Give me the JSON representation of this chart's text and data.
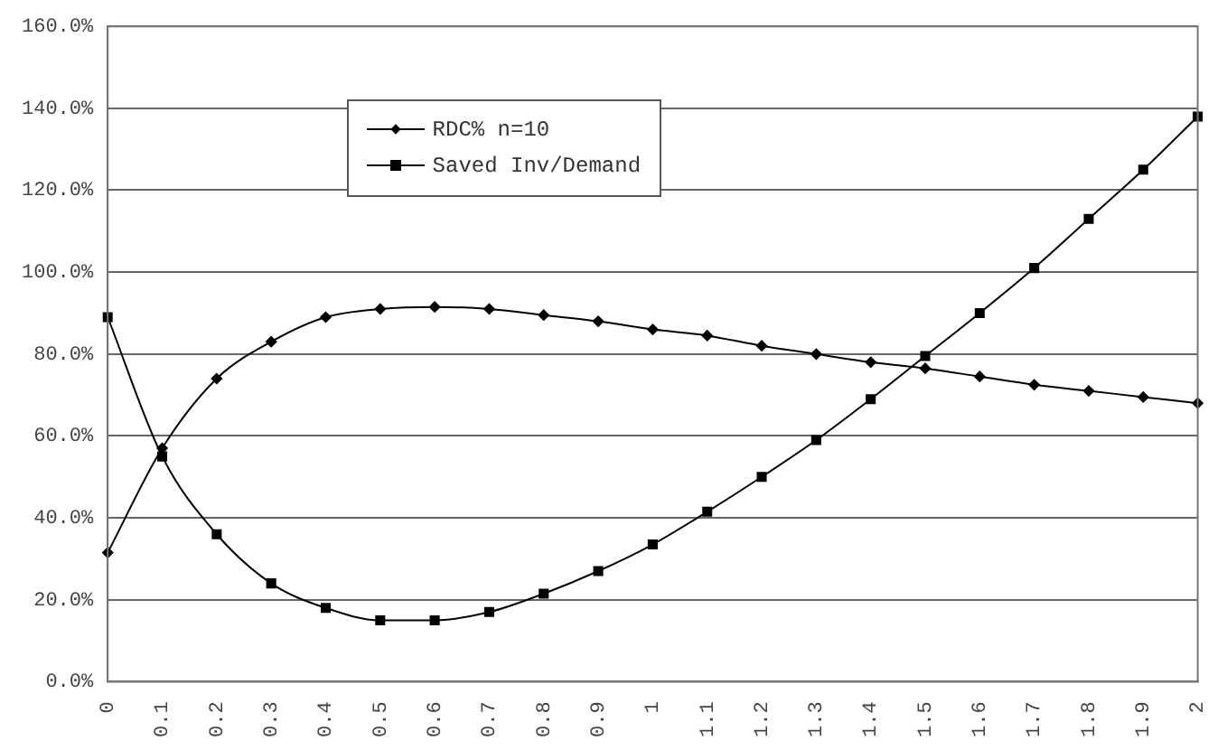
{
  "chart_data": {
    "type": "line",
    "categories": [
      "0",
      "0.1",
      "0.2",
      "0.3",
      "0.4",
      "0.5",
      "0.6",
      "0.7",
      "0.8",
      "0.9",
      "1",
      "1.1",
      "1.2",
      "1.3",
      "1.4",
      "1.5",
      "1.6",
      "1.7",
      "1.8",
      "1.9",
      "2"
    ],
    "series": [
      {
        "name": "RDC% n=10",
        "color": "#000000",
        "marker": "diamond",
        "values": [
          31.5,
          57,
          74,
          83,
          89,
          91,
          91.5,
          91,
          89.5,
          88,
          86,
          84.5,
          82,
          80,
          78,
          76.5,
          74.5,
          72.5,
          71,
          69.5,
          68
        ]
      },
      {
        "name": "Saved Inv/Demand",
        "color": "#000000",
        "marker": "square",
        "values": [
          89,
          55,
          36,
          24,
          18,
          15,
          15,
          17,
          21.5,
          27,
          33.5,
          41.5,
          50,
          59,
          69,
          79.5,
          90,
          101,
          113,
          125,
          138
        ]
      }
    ],
    "ylim": [
      0,
      160
    ],
    "yticks": [
      {
        "value": 0,
        "label": "0.0%"
      },
      {
        "value": 20,
        "label": "20.0%"
      },
      {
        "value": 40,
        "label": "40.0%"
      },
      {
        "value": 60,
        "label": "60.0%"
      },
      {
        "value": 80,
        "label": "80.0%"
      },
      {
        "value": 100,
        "label": "100.0%"
      },
      {
        "value": 120,
        "label": "120.0%"
      },
      {
        "value": 140,
        "label": "140.0%"
      },
      {
        "value": 160,
        "label": "160.0%"
      }
    ],
    "grid": "y",
    "legend": "top left",
    "line_style": "solid"
  }
}
